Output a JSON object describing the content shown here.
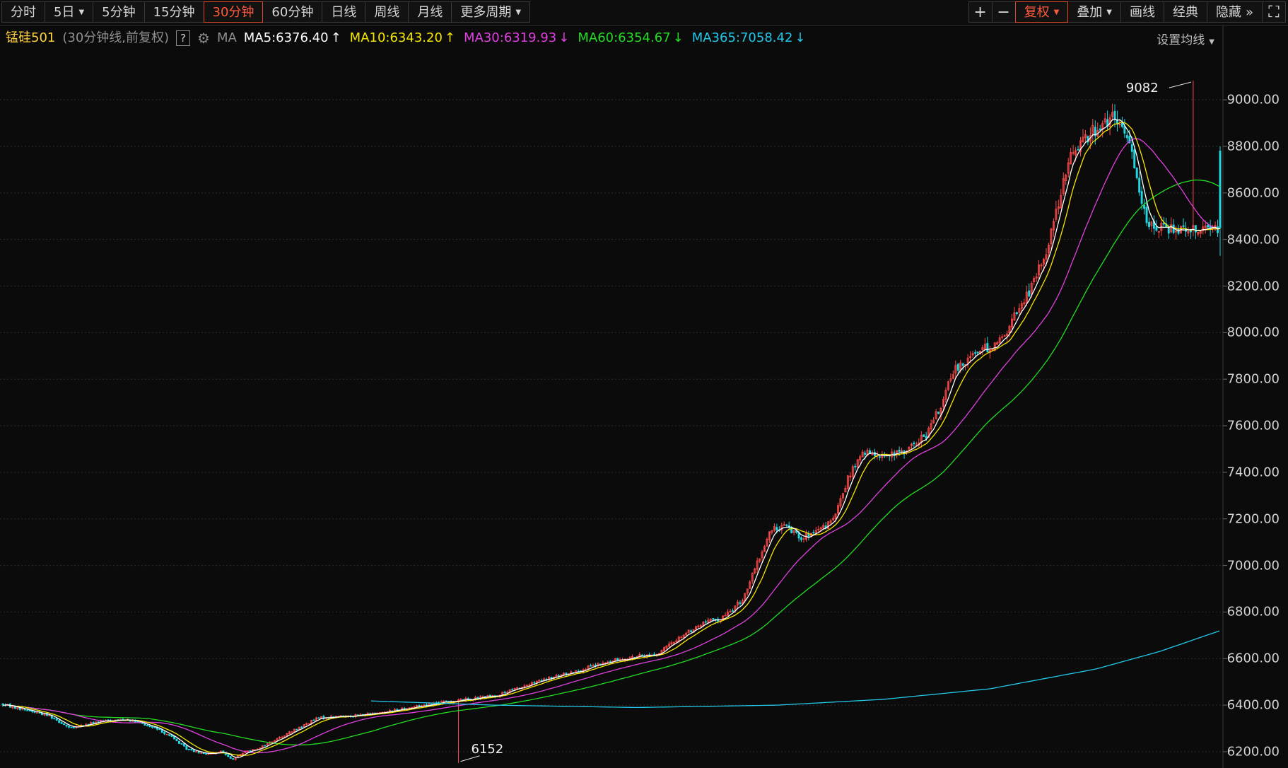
{
  "toolbar": {
    "periods": [
      {
        "label": "分时",
        "active": false,
        "dropdown": false
      },
      {
        "label": "5日",
        "active": false,
        "dropdown": true
      },
      {
        "label": "5分钟",
        "active": false,
        "dropdown": false
      },
      {
        "label": "15分钟",
        "active": false,
        "dropdown": false
      },
      {
        "label": "30分钟",
        "active": true,
        "dropdown": false
      },
      {
        "label": "60分钟",
        "active": false,
        "dropdown": false
      },
      {
        "label": "日线",
        "active": false,
        "dropdown": false
      },
      {
        "label": "周线",
        "active": false,
        "dropdown": false
      },
      {
        "label": "月线",
        "active": false,
        "dropdown": false
      },
      {
        "label": "更多周期",
        "active": false,
        "dropdown": true
      }
    ],
    "zoom_in": "+",
    "zoom_out": "−",
    "right_buttons": [
      {
        "label": "复权",
        "active": true,
        "dropdown": true
      },
      {
        "label": "叠加",
        "active": false,
        "dropdown": true
      },
      {
        "label": "画线",
        "active": false,
        "dropdown": false
      },
      {
        "label": "经典",
        "active": false,
        "dropdown": false
      },
      {
        "label": "隐藏",
        "active": false,
        "dropdown": false,
        "suffix": "»"
      }
    ],
    "fullscreen_glyph": "⛶"
  },
  "legend": {
    "symbol": "锰硅501",
    "subtitle": "(30分钟线,前复权)",
    "help": "?",
    "ma_label": "MA",
    "settings_label": "设置均线",
    "mas": [
      {
        "text": "MA5:6376.40",
        "arrow": "↑",
        "color": "#ffffff"
      },
      {
        "text": "MA10:6343.20",
        "arrow": "↑",
        "color": "#f5e600"
      },
      {
        "text": "MA30:6319.93",
        "arrow": "↓",
        "color": "#e040e0"
      },
      {
        "text": "MA60:6354.67",
        "arrow": "↓",
        "color": "#22dd22"
      },
      {
        "text": "MA365:7058.42",
        "arrow": "↓",
        "color": "#22c8e8"
      }
    ]
  },
  "chart_data": {
    "type": "candlestick",
    "ylim": [
      6130,
      9210
    ],
    "y_ticks": [
      "9000.00",
      "8800.00",
      "8600.00",
      "8400.00",
      "8200.00",
      "8000.00",
      "7800.00",
      "7600.00",
      "7400.00",
      "7200.00",
      "7000.00",
      "6800.00",
      "6600.00",
      "6400.00",
      "6200.00"
    ],
    "high_label": "9082",
    "low_label": "6152",
    "bar_count": 498,
    "ma5_current": 6376.4,
    "ma10_current": 6343.2,
    "ma30_current": 6319.93,
    "ma60_current": 6354.67,
    "ma365_current": 7058.42,
    "up_color": "#ff4a4a",
    "down_color": "#20d6e0",
    "grid": true
  }
}
